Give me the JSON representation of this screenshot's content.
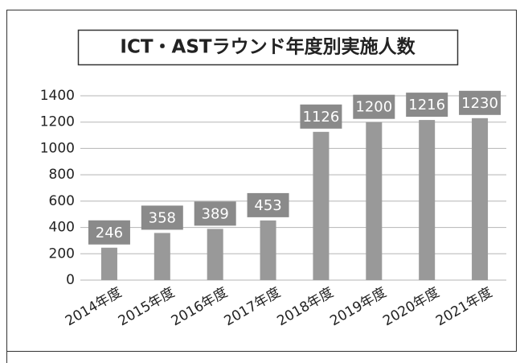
{
  "chart_data": {
    "type": "bar",
    "title": "ICT・ASTラウンド年度別実施人数",
    "categories": [
      "2014年度",
      "2015年度",
      "2016年度",
      "2017年度",
      "2018年度",
      "2019年度",
      "2020年度",
      "2021年度"
    ],
    "values": [
      246,
      358,
      389,
      453,
      1126,
      1200,
      1216,
      1230
    ],
    "color": "#999999",
    "ylim": [
      0,
      1400
    ],
    "yticks": [
      0,
      200,
      400,
      600,
      800,
      1000,
      1200,
      1400
    ],
    "grid": true
  }
}
